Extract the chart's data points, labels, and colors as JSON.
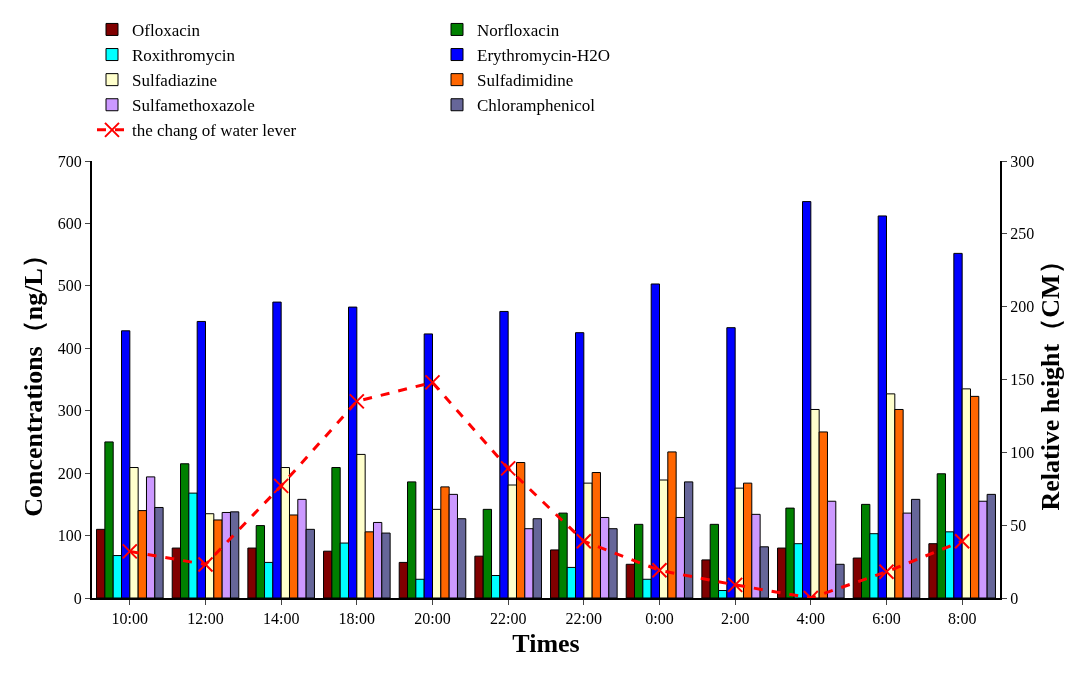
{
  "chart_data": {
    "type": "bar",
    "xlabel": "Times",
    "ylabel": "Concentrations（ng/L）",
    "y2label": "Relative height（CM）",
    "categories": [
      "10:00",
      "12:00",
      "14:00",
      "18:00",
      "20:00",
      "22:00",
      "22:00",
      "0:00",
      "2:00",
      "4:00",
      "6:00",
      "8:00"
    ],
    "series": [
      {
        "name": "Ofloxacin",
        "color": "#800000",
        "values": [
          110,
          80,
          80,
          75,
          57,
          67,
          77,
          54,
          61,
          80,
          64,
          87
        ]
      },
      {
        "name": "Norfloxacin",
        "color": "#008000",
        "values": [
          250,
          215,
          116,
          209,
          186,
          142,
          136,
          118,
          118,
          144,
          150,
          199
        ]
      },
      {
        "name": "Roxithromycin",
        "color": "#00ffff",
        "values": [
          68,
          168,
          57,
          88,
          30,
          36,
          49,
          30,
          12,
          87,
          103,
          106
        ]
      },
      {
        "name": "Erythromycin-H2O",
        "color": "#0000ff",
        "values": [
          428,
          443,
          474,
          466,
          423,
          459,
          425,
          503,
          433,
          635,
          612,
          552
        ]
      },
      {
        "name": "Sulfadiazine",
        "color": "#ffffcc",
        "values": [
          209,
          135,
          209,
          230,
          142,
          181,
          184,
          189,
          176,
          302,
          327,
          335
        ]
      },
      {
        "name": "Sulfadimidine",
        "color": "#ff6600",
        "values": [
          140,
          125,
          133,
          106,
          178,
          217,
          201,
          234,
          184,
          266,
          302,
          323
        ]
      },
      {
        "name": "Sulfamethoxazole",
        "color": "#cc99ff",
        "values": [
          194,
          137,
          158,
          121,
          166,
          111,
          129,
          129,
          134,
          155,
          136,
          155
        ]
      },
      {
        "name": "Chloramphenicol",
        "color": "#666699",
        "values": [
          145,
          138,
          110,
          104,
          127,
          127,
          111,
          186,
          82,
          54,
          158,
          166
        ]
      },
      {
        "name": "the chang of water lever",
        "color": "#ff0000",
        "type": "line",
        "axis": "y2",
        "marker": "cross",
        "line_style": "dashed",
        "values": [
          32,
          23,
          77,
          135,
          148,
          89,
          39,
          19,
          9,
          0,
          18,
          39
        ]
      }
    ],
    "ylim": [
      0,
      700
    ],
    "yticks": [
      0,
      100,
      200,
      300,
      400,
      500,
      600,
      700
    ],
    "y2lim": [
      0,
      300
    ],
    "y2ticks": [
      0,
      50,
      100,
      150,
      200,
      250,
      300
    ],
    "legend": "top"
  }
}
